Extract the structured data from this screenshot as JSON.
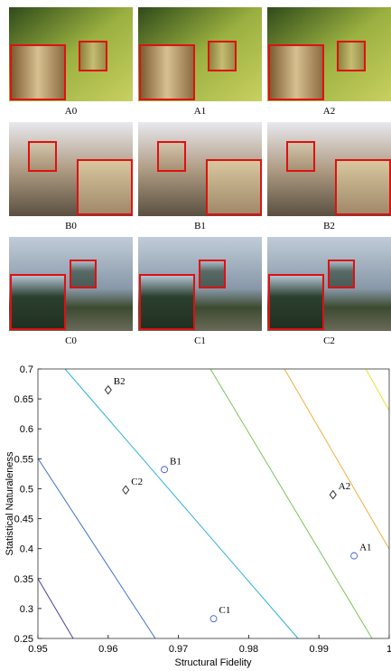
{
  "panels": {
    "labels": [
      [
        "A0",
        "A1",
        "A2"
      ],
      [
        "B0",
        "B1",
        "B2"
      ],
      [
        "C0",
        "C1",
        "C2"
      ]
    ]
  },
  "chart_data": {
    "type": "scatter",
    "x_label": "Structural Fidelity",
    "y_label": "Statistical Naturaleness",
    "xlim": [
      0.95,
      1
    ],
    "xticks": [
      0.95,
      0.96,
      0.97,
      0.98,
      0.99,
      1
    ],
    "ylim": [
      0.25,
      0.7
    ],
    "yticks": [
      0.25,
      0.3,
      0.35,
      0.4,
      0.45,
      0.5,
      0.55,
      0.6,
      0.65,
      0.7
    ],
    "series": [
      {
        "marker": "circle",
        "color": "#3f5fd8",
        "x": [
          0.968,
          0.975,
          0.995
        ],
        "values": [
          0.532,
          0.283,
          0.388
        ],
        "labels": [
          "B1",
          "C1",
          "A1"
        ]
      },
      {
        "marker": "diamond",
        "color": "#222222",
        "x": [
          0.96,
          0.9625,
          0.992
        ],
        "values": [
          0.665,
          0.498,
          0.49
        ],
        "labels": [
          "B2",
          "C2",
          "A2"
        ]
      }
    ]
  }
}
